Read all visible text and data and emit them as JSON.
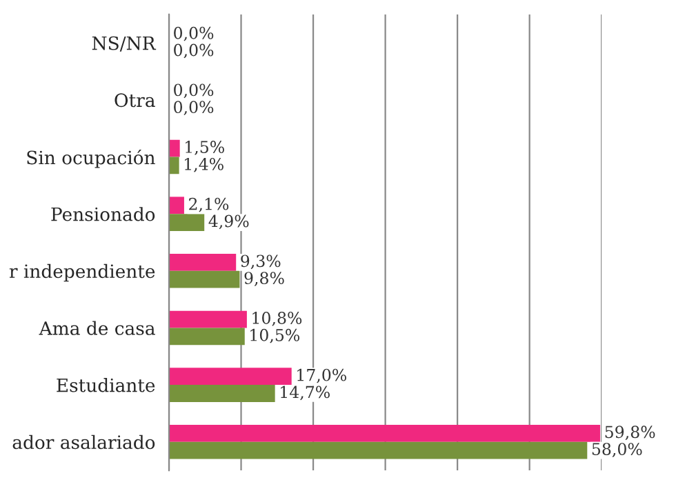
{
  "chart_data": {
    "type": "bar",
    "orientation": "horizontal",
    "categories": [
      "NS/NR",
      "Otra",
      "Sin ocupación",
      "Pensionado",
      "r independiente",
      "Ama de casa",
      "Estudiante",
      "ador asalariado"
    ],
    "series": [
      {
        "color": "#f0287f",
        "values": [
          0,
          0,
          1.5,
          2.1,
          9.3,
          10.8,
          17.0,
          59.8
        ],
        "value_labels": [
          "0,0%",
          "0,0%",
          "1,5%",
          "2,1%",
          "9,3%",
          "10,8%",
          "17,0%",
          "59,8%"
        ]
      },
      {
        "color": "#77933c",
        "values": [
          0,
          0,
          1.4,
          4.9,
          9.8,
          10.5,
          14.7,
          58.0
        ],
        "value_labels": [
          "0,0%",
          "0,0%",
          "1,4%",
          "4,9%",
          "9,8%",
          "10,5%",
          "14,7%",
          "58,0%"
        ]
      }
    ],
    "xlim": [
      0,
      60
    ],
    "xticks": [
      {
        "value": 0,
        "label": null
      },
      {
        "value": 10,
        "label": null
      },
      {
        "value": 20,
        "label": null
      },
      {
        "value": 30,
        "label": null
      },
      {
        "value": 40,
        "label": null
      },
      {
        "value": 50,
        "label": null
      },
      {
        "value": 60,
        "label": null
      }
    ],
    "grid": "x",
    "tick_labels": "y",
    "legend": false
  }
}
